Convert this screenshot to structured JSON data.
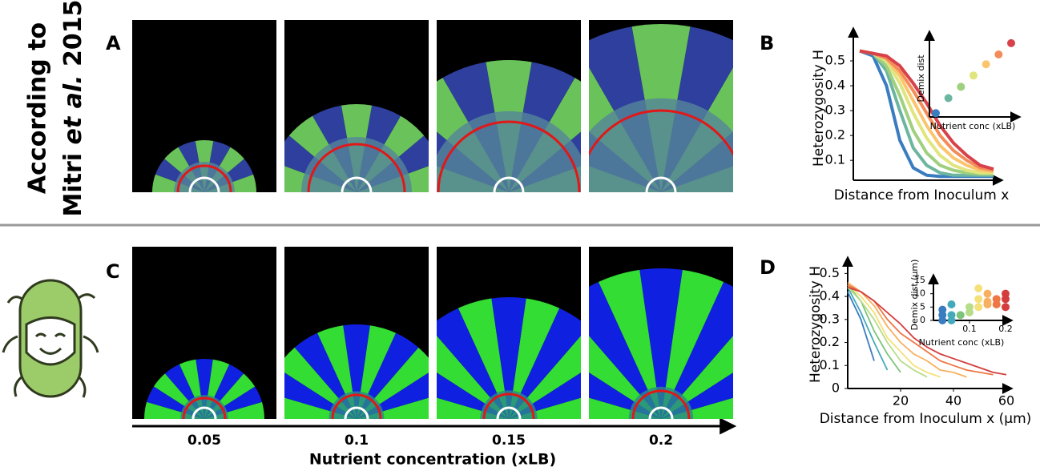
{
  "side_label": {
    "line1": "According to",
    "line2_before": "Mitri ",
    "line2_italic": "et al.",
    "line2_after": " 2015"
  },
  "panel_labels": [
    "A",
    "B",
    "C",
    "D"
  ],
  "nutrient_axis": {
    "title": "Nutrient concentration (xLB)",
    "labels": [
      "0.05",
      "0.1",
      "0.15",
      "0.2"
    ]
  },
  "chart_data": [
    {
      "type": "line",
      "ylabel": "Heterozygosity H",
      "xlabel": "Distance from Inoculum x",
      "ylim": [
        0.02,
        0.6
      ],
      "yticks": [
        0.1,
        0.2,
        0.3,
        0.4,
        0.5
      ],
      "categories": [
        null,
        null,
        null,
        null,
        null,
        null,
        null,
        null,
        null,
        null,
        null
      ],
      "series": [
        {
          "color": "#3a7cc0",
          "values": [
            0.54,
            0.52,
            0.4,
            0.18,
            0.07,
            0.04,
            0.035,
            0.035,
            0.035,
            0.035,
            0.035
          ]
        },
        {
          "color": "#6cb6a0",
          "values": [
            0.54,
            0.53,
            0.46,
            0.3,
            0.15,
            0.08,
            0.05,
            0.04,
            0.04,
            0.04,
            0.04
          ]
        },
        {
          "color": "#9fd07f",
          "values": [
            0.54,
            0.53,
            0.48,
            0.36,
            0.22,
            0.13,
            0.08,
            0.06,
            0.05,
            0.045,
            0.045
          ]
        },
        {
          "color": "#e0e57e",
          "values": [
            0.54,
            0.53,
            0.5,
            0.41,
            0.29,
            0.19,
            0.12,
            0.08,
            0.06,
            0.05,
            0.05
          ]
        },
        {
          "color": "#fbc56e",
          "values": [
            0.54,
            0.53,
            0.51,
            0.44,
            0.34,
            0.24,
            0.16,
            0.11,
            0.08,
            0.06,
            0.055
          ]
        },
        {
          "color": "#f48c5a",
          "values": [
            0.54,
            0.53,
            0.51,
            0.46,
            0.38,
            0.29,
            0.2,
            0.14,
            0.1,
            0.07,
            0.06
          ]
        },
        {
          "color": "#d7424a",
          "values": [
            0.54,
            0.53,
            0.52,
            0.48,
            0.41,
            0.33,
            0.24,
            0.17,
            0.12,
            0.08,
            0.065
          ]
        }
      ]
    },
    {
      "type": "scatter",
      "ylabel": "Demix dist",
      "xlabel": "Nutrient conc (xLB)",
      "ylim": [
        0,
        1
      ],
      "categories": [
        null,
        null,
        null,
        null,
        null,
        null,
        null
      ],
      "values": [
        0.05,
        0.25,
        0.4,
        0.55,
        0.7,
        0.83,
        0.98
      ],
      "colors": [
        "#3a7cc0",
        "#6cb6a0",
        "#9fd07f",
        "#e0e57e",
        "#fbc56e",
        "#f48c5a",
        "#d7424a"
      ]
    },
    {
      "type": "line",
      "ylabel": "Heterozygosity H",
      "xlabel": "Distance from Inoculum x (μm)",
      "xlim": [
        0,
        60
      ],
      "xticks": [
        20,
        40,
        60
      ],
      "ylim": [
        0,
        0.55
      ],
      "yticks": [
        0,
        0.1,
        0.2,
        0.3,
        0.4,
        0.5
      ],
      "x": [
        0,
        5,
        10,
        15,
        20,
        25,
        30,
        35,
        40,
        45,
        50,
        55,
        60
      ],
      "series": [
        {
          "color": "#3a7cc0",
          "values": [
            0.42,
            0.3,
            0.12,
            null,
            null,
            null,
            null,
            null,
            null,
            null,
            null,
            null,
            null
          ]
        },
        {
          "color": "#44aabb",
          "values": [
            0.44,
            0.33,
            0.2,
            0.08,
            null,
            null,
            null,
            null,
            null,
            null,
            null,
            null,
            null
          ]
        },
        {
          "color": "#7cc47a",
          "values": [
            0.45,
            0.38,
            0.25,
            0.15,
            0.07,
            null,
            null,
            null,
            null,
            null,
            null,
            null,
            null
          ]
        },
        {
          "color": "#b8dd88",
          "values": [
            0.44,
            0.38,
            0.3,
            0.2,
            0.12,
            0.08,
            0.05,
            null,
            null,
            null,
            null,
            null,
            null
          ]
        },
        {
          "color": "#f5e07a",
          "values": [
            0.45,
            0.4,
            0.33,
            0.22,
            0.16,
            0.1,
            0.07,
            0.05,
            null,
            null,
            null,
            null,
            null
          ]
        },
        {
          "color": "#f8b060",
          "values": [
            0.46,
            0.42,
            0.36,
            0.27,
            0.2,
            0.15,
            0.12,
            0.08,
            0.07,
            0.05,
            null,
            null,
            null
          ]
        },
        {
          "color": "#ee7744",
          "values": [
            0.45,
            0.42,
            0.38,
            0.3,
            0.24,
            0.2,
            0.16,
            0.12,
            0.1,
            0.08,
            0.07,
            0.06,
            null
          ]
        },
        {
          "color": "#d43d3d",
          "values": [
            0.44,
            0.42,
            0.38,
            0.33,
            0.28,
            0.22,
            0.18,
            0.15,
            0.13,
            0.11,
            0.09,
            0.07,
            0.06
          ]
        }
      ]
    },
    {
      "type": "scatter",
      "ylabel": "Demix dist (μm)",
      "xlabel": "Nutrient conc (xLB)",
      "xlim": [
        0,
        0.2
      ],
      "xticks": [
        0.1,
        0.2
      ],
      "ylim": [
        0,
        15
      ],
      "yticks": [
        0,
        5,
        10,
        15
      ],
      "x": [
        0.025,
        0.025,
        0.025,
        0.05,
        0.05,
        0.05,
        0.075,
        0.1,
        0.1,
        0.125,
        0.125,
        0.125,
        0.15,
        0.15,
        0.15,
        0.175,
        0.175,
        0.2,
        0.2,
        0.2
      ],
      "values": [
        0,
        2,
        4,
        0,
        2,
        6,
        2,
        3,
        5,
        5,
        8,
        12,
        6,
        7,
        10,
        6,
        8,
        5,
        8,
        10
      ],
      "colors": [
        "#3a7cc0",
        "#3a7cc0",
        "#3a7cc0",
        "#44aabb",
        "#44aabb",
        "#44aabb",
        "#7cc47a",
        "#b8dd88",
        "#b8dd88",
        "#f5e07a",
        "#f5e07a",
        "#f5e07a",
        "#f8b060",
        "#f8b060",
        "#f8b060",
        "#ee7744",
        "#ee7744",
        "#d43d3d",
        "#d43d3d",
        "#d43d3d"
      ]
    }
  ]
}
